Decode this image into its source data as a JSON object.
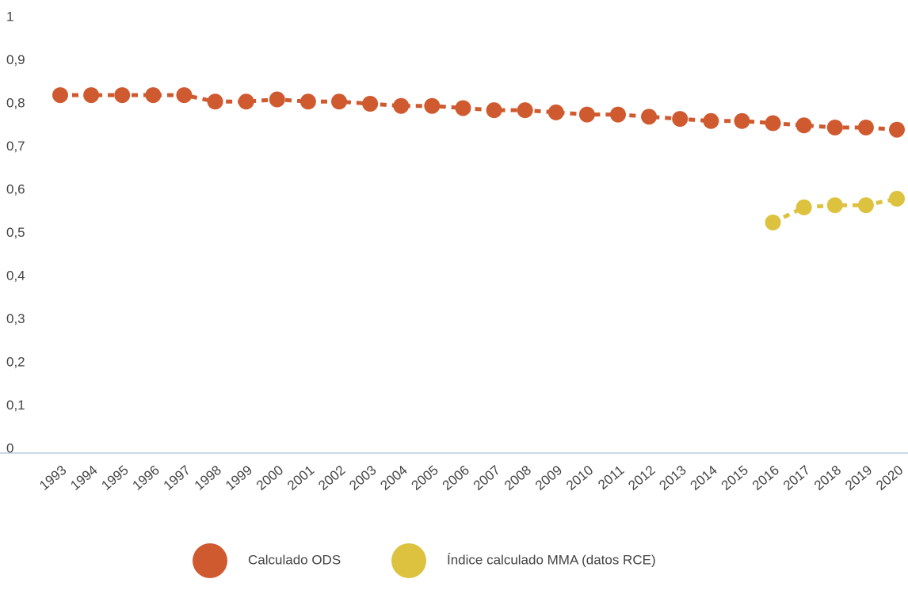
{
  "chart_data": {
    "type": "line",
    "categories": [
      "1993",
      "1994",
      "1995",
      "1996",
      "1997",
      "1998",
      "1999",
      "2000",
      "2001",
      "2002",
      "2003",
      "2004",
      "2005",
      "2006",
      "2007",
      "2008",
      "2009",
      "2010",
      "2011",
      "2012",
      "2013",
      "2014",
      "2015",
      "2016",
      "2017",
      "2018",
      "2019",
      "2020"
    ],
    "series": [
      {
        "name": "Calculado ODS",
        "color": "#d05a30",
        "values": [
          0.82,
          0.82,
          0.82,
          0.82,
          0.82,
          0.805,
          0.805,
          0.81,
          0.805,
          0.805,
          0.8,
          0.795,
          0.795,
          0.79,
          0.785,
          0.785,
          0.78,
          0.775,
          0.775,
          0.77,
          0.765,
          0.76,
          0.76,
          0.755,
          0.75,
          0.745,
          0.745,
          0.74
        ]
      },
      {
        "name": "Índice calculado MMA (datos RCE)",
        "color": "#dcc23e",
        "values": [
          null,
          null,
          null,
          null,
          null,
          null,
          null,
          null,
          null,
          null,
          null,
          null,
          null,
          null,
          null,
          null,
          null,
          null,
          null,
          null,
          null,
          null,
          null,
          0.525,
          0.56,
          0.565,
          0.565,
          0.58
        ]
      }
    ],
    "ylim": [
      0,
      1
    ],
    "yticks": [
      0,
      {
        "value": 0.1,
        "label": "0,1"
      },
      {
        "value": 0.2,
        "label": "0,2"
      },
      {
        "value": 0.3,
        "label": "0,3"
      },
      {
        "value": 0.4,
        "label": "0,4"
      },
      {
        "value": 0.5,
        "label": "0,5"
      },
      {
        "value": 0.6,
        "label": "0,6"
      },
      {
        "value": 0.7,
        "label": "0,7"
      },
      {
        "value": 0.8,
        "label": "0,8"
      },
      {
        "value": 0.9,
        "label": "0,9"
      },
      1
    ],
    "legend": "bottom"
  }
}
